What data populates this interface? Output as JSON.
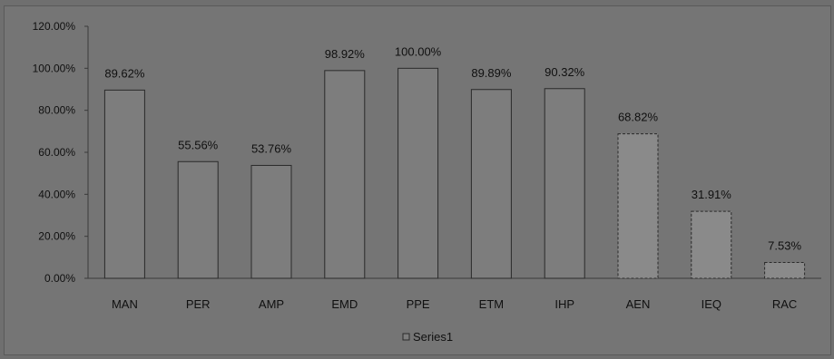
{
  "chart_data": {
    "type": "bar",
    "categories": [
      "MAN",
      "PER",
      "AMP",
      "EMD",
      "PPE",
      "ETM",
      "IHP",
      "AEN",
      "IEQ",
      "RAC"
    ],
    "series": [
      {
        "name": "Series1",
        "values": [
          89.62,
          55.56,
          53.76,
          98.92,
          100.0,
          89.89,
          90.32,
          68.82,
          31.91,
          7.53
        ],
        "data_labels": [
          "89.62%",
          "55.56%",
          "53.76%",
          "98.92%",
          "100.00%",
          "89.89%",
          "90.32%",
          "68.82%",
          "31.91%",
          "7.53%"
        ]
      }
    ],
    "ylim": [
      0,
      120
    ],
    "yticks": [
      0,
      20,
      40,
      60,
      80,
      100,
      120
    ],
    "ytick_labels": [
      "0.00%",
      "20.00%",
      "40.00%",
      "60.00%",
      "80.00%",
      "100.00%",
      "120.00%"
    ],
    "grid": false,
    "legend_position": "bottom",
    "colors": {
      "bar_fill": "#7d7d7d",
      "bar_fill_light": "#8a8a8a",
      "bar_stroke": "#2a2a2a",
      "axis": "#3a3a3a"
    }
  }
}
